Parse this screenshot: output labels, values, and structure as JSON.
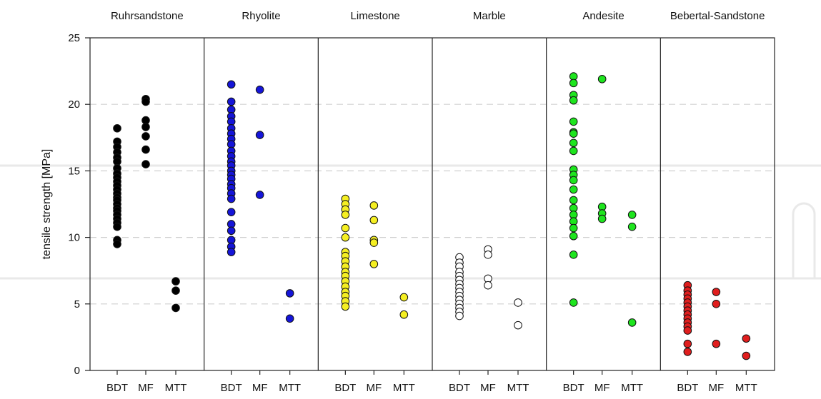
{
  "chart_data": {
    "type": "scatter",
    "ylabel": "tensile strength [MPa]",
    "ylim": [
      0,
      25
    ],
    "yticks": [
      0,
      5,
      10,
      15,
      20,
      25
    ],
    "grid": "horizontal dashed at 5, 10, 15, 20",
    "methods": [
      "BDT",
      "MF",
      "MTT"
    ],
    "panels": [
      {
        "name": "Ruhrsandstone",
        "color": "#000000",
        "series": [
          {
            "name": "BDT",
            "values": [
              18.2,
              17.2,
              16.8,
              16.4,
              16.0,
              15.7,
              15.2,
              14.8,
              14.5,
              14.2,
              13.9,
              13.6,
              13.3,
              13.0,
              12.8,
              12.5,
              12.2,
              12.0,
              11.7,
              11.4,
              11.1,
              10.8,
              9.8,
              9.5
            ]
          },
          {
            "name": "MF",
            "values": [
              20.4,
              20.2,
              18.8,
              18.3,
              17.6,
              16.6,
              15.5
            ]
          },
          {
            "name": "MTT",
            "values": [
              6.7,
              6.0,
              4.7
            ]
          }
        ]
      },
      {
        "name": "Rhyolite",
        "color": "#1515d8",
        "series": [
          {
            "name": "BDT",
            "values": [
              21.5,
              20.2,
              19.6,
              19.1,
              18.7,
              18.2,
              17.8,
              17.4,
              17.0,
              16.5,
              16.1,
              15.7,
              15.4,
              15.0,
              14.7,
              14.4,
              14.0,
              13.7,
              13.3,
              12.9,
              11.9,
              11.0,
              10.5,
              9.8,
              9.3,
              8.9
            ]
          },
          {
            "name": "MF",
            "values": [
              21.1,
              17.7,
              13.2
            ]
          },
          {
            "name": "MTT",
            "values": [
              5.8,
              3.9
            ]
          }
        ]
      },
      {
        "name": "Limestone",
        "color": "#f5ef22",
        "series": [
          {
            "name": "BDT",
            "values": [
              12.9,
              12.5,
              12.1,
              11.7,
              10.7,
              10.0,
              8.9,
              8.6,
              8.2,
              7.8,
              7.4,
              7.1,
              6.7,
              6.3,
              5.9,
              5.6,
              5.2,
              4.8
            ]
          },
          {
            "name": "MF",
            "values": [
              12.4,
              11.3,
              9.8,
              9.6,
              8.0
            ]
          },
          {
            "name": "MTT",
            "values": [
              5.5,
              4.2
            ]
          }
        ]
      },
      {
        "name": "Marble",
        "color": "#ffffff",
        "series": [
          {
            "name": "BDT",
            "values": [
              8.5,
              8.1,
              7.8,
              7.4,
              7.1,
              6.8,
              6.5,
              6.2,
              5.9,
              5.6,
              5.3,
              5.0,
              4.7,
              4.4,
              4.1
            ]
          },
          {
            "name": "MF",
            "values": [
              9.1,
              8.7,
              6.9,
              6.4
            ]
          },
          {
            "name": "MTT",
            "values": [
              5.1,
              3.4
            ]
          }
        ]
      },
      {
        "name": "Andesite",
        "color": "#1ee51e",
        "series": [
          {
            "name": "BDT",
            "values": [
              22.1,
              21.6,
              20.7,
              20.3,
              18.7,
              17.9,
              17.8,
              17.1,
              16.5,
              15.1,
              14.7,
              14.3,
              13.6,
              12.8,
              12.2,
              11.7,
              11.2,
              10.7,
              10.1,
              8.7,
              5.1
            ]
          },
          {
            "name": "MF",
            "values": [
              21.9,
              12.3,
              11.8,
              11.4
            ]
          },
          {
            "name": "MTT",
            "values": [
              11.7,
              10.8,
              3.6
            ]
          }
        ]
      },
      {
        "name": "Bebertal-Sandstone",
        "color": "#e01e1e",
        "series": [
          {
            "name": "BDT",
            "values": [
              6.4,
              6.0,
              5.7,
              5.4,
              5.1,
              4.8,
              4.5,
              4.2,
              3.9,
              3.6,
              3.3,
              3.0,
              2.0,
              1.4
            ]
          },
          {
            "name": "MF",
            "values": [
              5.9,
              5.0,
              2.0
            ]
          },
          {
            "name": "MTT",
            "values": [
              2.4,
              1.1
            ]
          }
        ]
      }
    ]
  }
}
